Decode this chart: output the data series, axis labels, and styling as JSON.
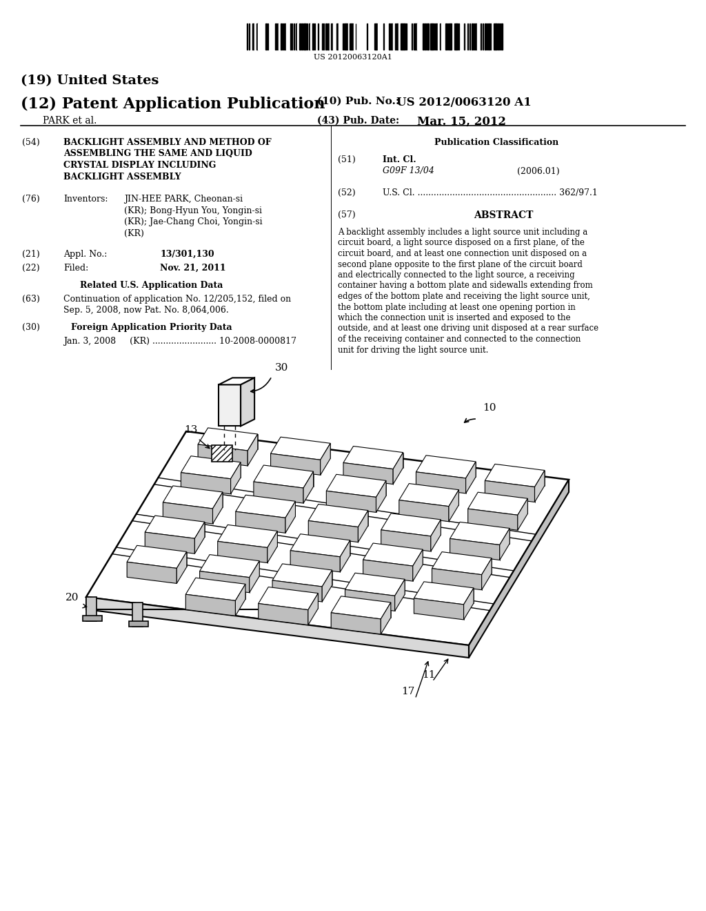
{
  "bg_color": "#ffffff",
  "barcode_text": "US 20120063120A1",
  "title_19": "(19) United States",
  "title_12": "(12) Patent Application Publication",
  "pub_no_label": "(10) Pub. No.:",
  "pub_no_value": "US 2012/0063120 A1",
  "author": "PARK et al.",
  "pub_date_label": "(43) Pub. Date:",
  "pub_date_value": "Mar. 15, 2012",
  "field54_label": "(54)",
  "field54_lines": [
    "BACKLIGHT ASSEMBLY AND METHOD OF",
    "ASSEMBLING THE SAME AND LIQUID",
    "CRYSTAL DISPLAY INCLUDING",
    "BACKLIGHT ASSEMBLY"
  ],
  "field76_label": "(76)",
  "inventors_label": "Inventors:",
  "inv_line1": "JIN-HEE PARK, Cheonan-si",
  "inv_line2": "(KR); Bong-Hyun You, Yongin-si",
  "inv_line3": "(KR); Jae-Chang Choi, Yongin-si",
  "inv_line4": "(KR)",
  "field21_label": "(21)",
  "appl_no_label": "Appl. No.:",
  "appl_no_value": "13/301,130",
  "field22_label": "(22)",
  "filed_label": "Filed:",
  "filed_value": "Nov. 21, 2011",
  "related_header": "Related U.S. Application Data",
  "field63_label": "(63)",
  "field63_line1": "Continuation of application No. 12/205,152, filed on",
  "field63_line2": "Sep. 5, 2008, now Pat. No. 8,064,006.",
  "field30_label": "(30)",
  "foreign_header": "Foreign Application Priority Data",
  "foreign_data": "Jan. 3, 2008     (KR) ........................ 10-2008-0000817",
  "pub_class_header": "Publication Classification",
  "field51_label": "(51)",
  "int_cl_label": "Int. Cl.",
  "int_cl_value": "G09F 13/04",
  "int_cl_year": "(2006.01)",
  "field52_label": "(52)",
  "us_cl_label": "U.S. Cl. .................................................... 362/97.1",
  "field57_label": "(57)",
  "abstract_header": "ABSTRACT",
  "abstract_lines": [
    "A backlight assembly includes a light source unit including a",
    "circuit board, a light source disposed on a first plane, of the",
    "circuit board, and at least one connection unit disposed on a",
    "second plane opposite to the first plane of the circuit board",
    "and electrically connected to the light source, a receiving",
    "container having a bottom plate and sidewalls extending from",
    "edges of the bottom plate and receiving the light source unit,",
    "the bottom plate including at least one opening portion in",
    "which the connection unit is inserted and exposed to the",
    "outside, and at least one driving unit disposed at a rear surface",
    "of the receiving container and connected to the connection",
    "unit for driving the light source unit."
  ]
}
